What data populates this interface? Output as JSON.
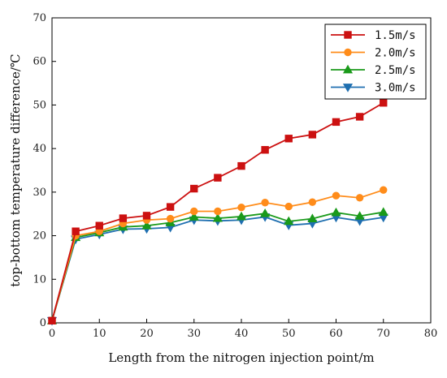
{
  "chart_data": {
    "type": "line",
    "xlabel": "Length from the nitrogen injection point/m",
    "ylabel": "top-bottom temperature difference/℃",
    "xlim": [
      0,
      80
    ],
    "ylim": [
      0,
      70
    ],
    "xticks": [
      0,
      10,
      20,
      30,
      40,
      50,
      60,
      70,
      80
    ],
    "yticks": [
      0,
      10,
      20,
      30,
      40,
      50,
      60,
      70
    ],
    "grid": false,
    "legend_position": "top-right",
    "x": [
      0,
      5,
      10,
      15,
      20,
      25,
      30,
      35,
      40,
      45,
      50,
      55,
      60,
      65,
      70
    ],
    "series": [
      {
        "name": "1.5m/s",
        "color": "#cc1111",
        "marker": "square",
        "values": [
          0.5,
          21.0,
          22.3,
          24.0,
          24.6,
          26.6,
          30.8,
          33.3,
          36.0,
          39.7,
          42.3,
          43.2,
          46.1,
          47.3,
          50.5
        ]
      },
      {
        "name": "2.0m/s",
        "color": "#ff8c1a",
        "marker": "circle",
        "values": [
          0.5,
          20.0,
          21.0,
          22.8,
          23.6,
          23.9,
          25.6,
          25.6,
          26.5,
          27.6,
          26.7,
          27.7,
          29.2,
          28.7,
          30.5
        ]
      },
      {
        "name": "2.5m/s",
        "color": "#1a9a1a",
        "marker": "triangle-up",
        "values": [
          0.5,
          19.6,
          20.7,
          22.0,
          22.3,
          23.0,
          24.3,
          24.0,
          24.4,
          25.1,
          23.3,
          23.9,
          25.3,
          24.5,
          25.4
        ]
      },
      {
        "name": "3.0m/s",
        "color": "#1f6fb0",
        "marker": "triangle-down",
        "values": [
          0.5,
          19.2,
          20.3,
          21.5,
          21.6,
          21.9,
          23.6,
          23.4,
          23.6,
          24.3,
          22.4,
          22.8,
          24.2,
          23.4,
          24.2
        ]
      }
    ]
  }
}
